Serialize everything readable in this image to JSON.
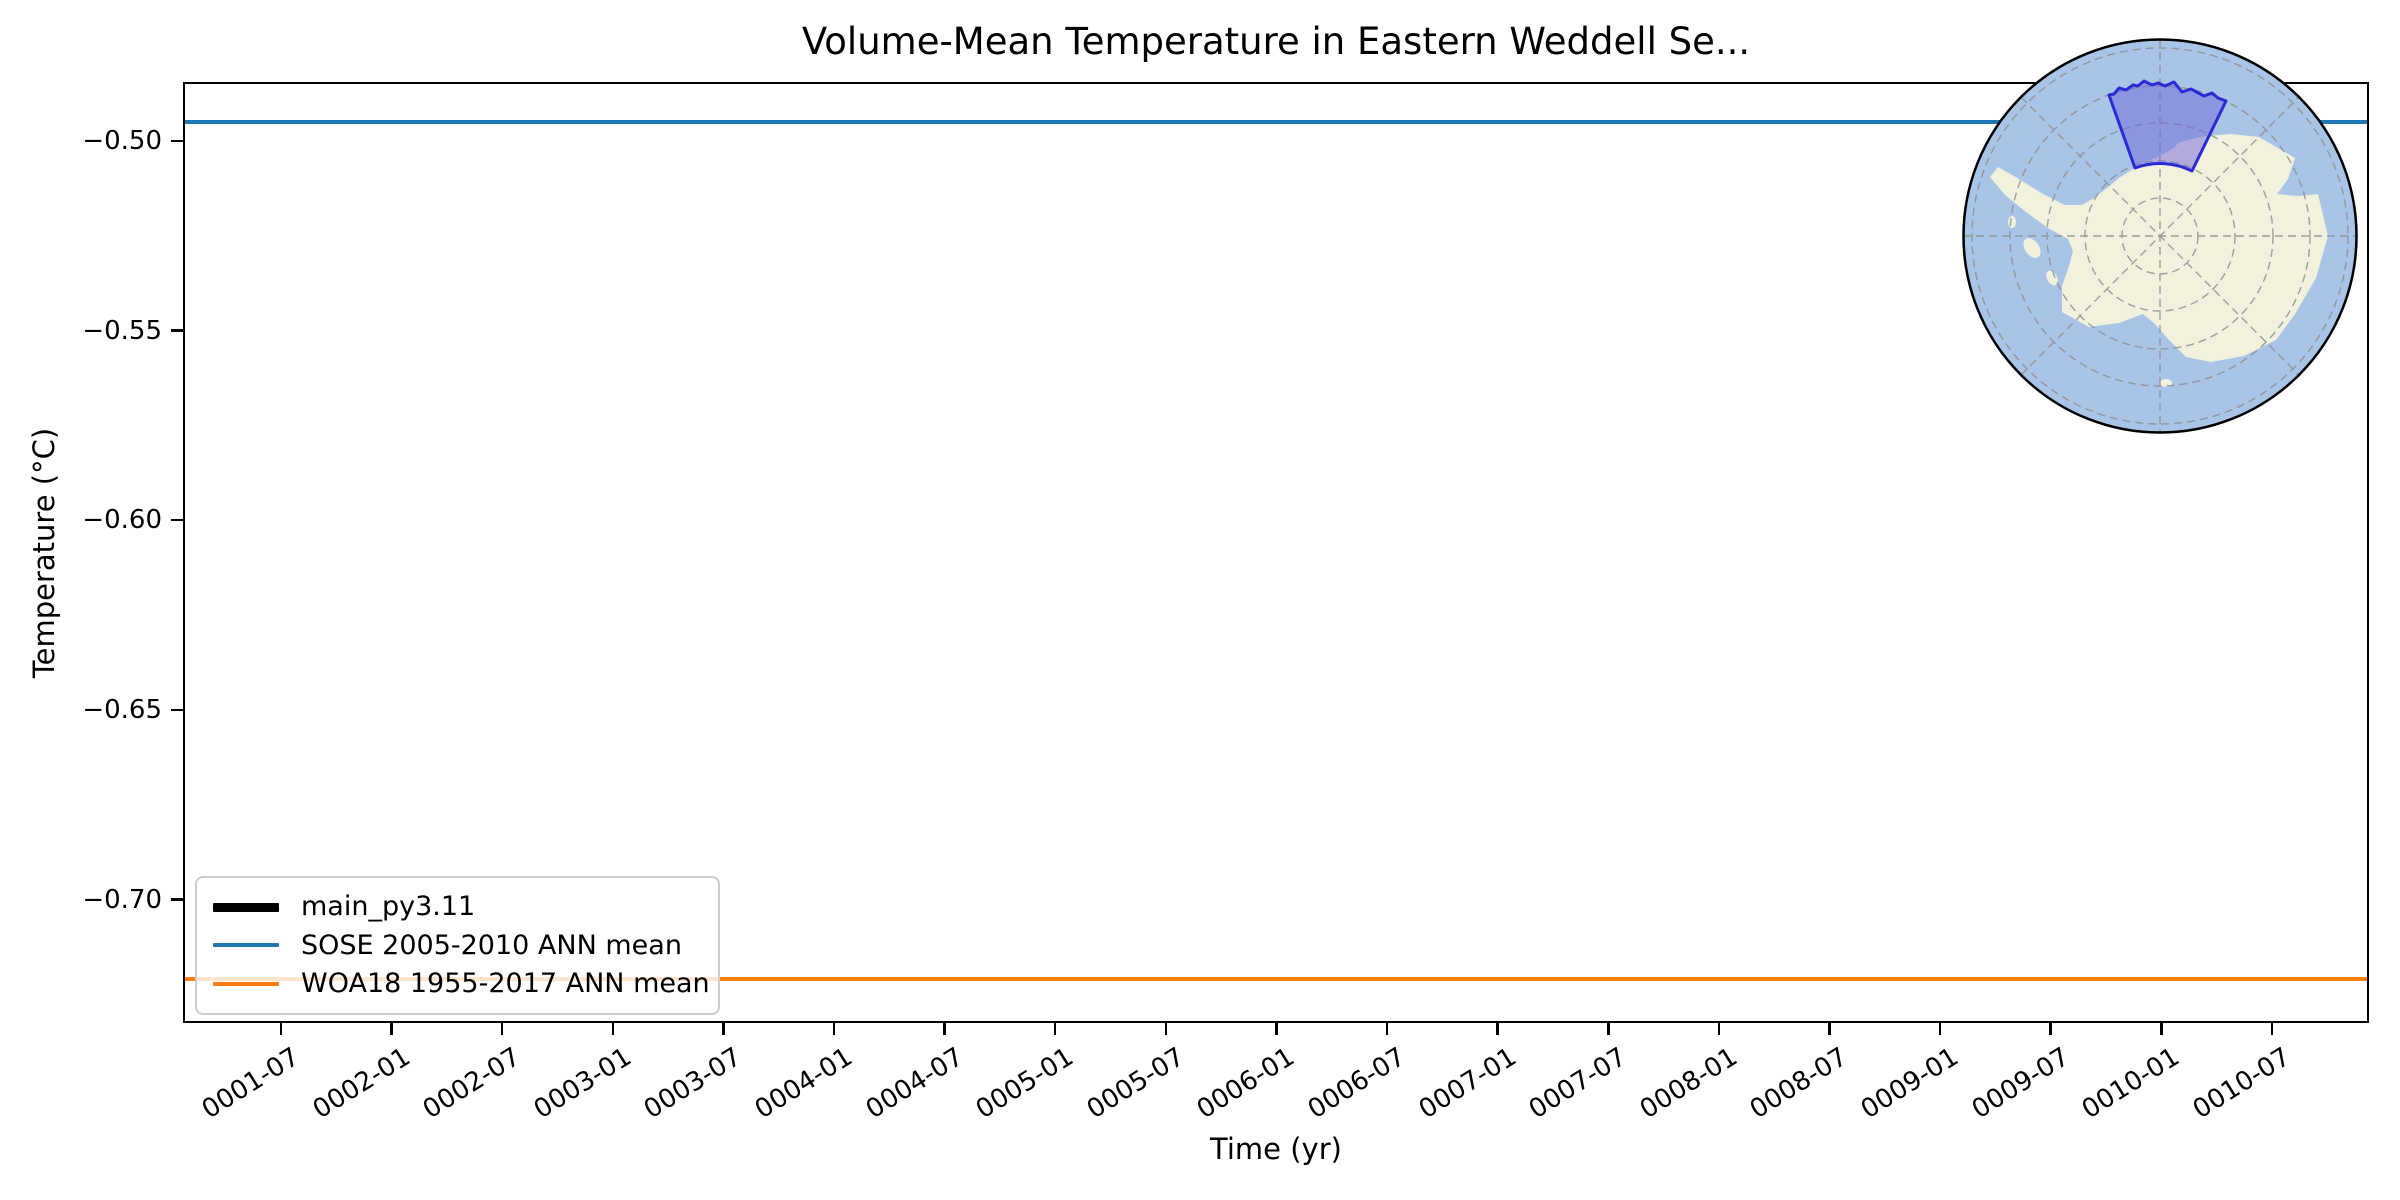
{
  "chart_data": {
    "type": "line",
    "title": "Volume-Mean Temperature in Eastern Weddell Se...",
    "xlabel": "Time (yr)",
    "ylabel": "Temperature (°C)",
    "ylim": [
      -0.7325,
      -0.4845
    ],
    "grid": false,
    "legend_position": "lower left",
    "y_ticks": [
      {
        "label": "−0.50",
        "value": -0.5
      },
      {
        "label": "−0.55",
        "value": -0.55
      },
      {
        "label": "−0.60",
        "value": -0.6
      },
      {
        "label": "−0.65",
        "value": -0.65
      },
      {
        "label": "−0.70",
        "value": -0.7
      }
    ],
    "x_tick_labels": [
      "0001-07",
      "0002-01",
      "0002-07",
      "0003-01",
      "0003-07",
      "0004-01",
      "0004-07",
      "0005-01",
      "0005-07",
      "0006-01",
      "0006-07",
      "0007-01",
      "0007-07",
      "0008-01",
      "0008-07",
      "0009-01",
      "0009-07",
      "0010-01",
      "0010-07"
    ],
    "series": [
      {
        "id": "main",
        "name": "main_py3.11",
        "type": "timeseries",
        "color": "#000000",
        "line_width": 9,
        "values": [],
        "visible_in_plot": false
      },
      {
        "id": "sose",
        "name": "SOSE 2005-2010 ANN mean",
        "type": "hline",
        "color": "#1f77b4",
        "line_width": 4,
        "value": -0.495
      },
      {
        "id": "woa18",
        "name": "WOA18 1955-2017 ANN mean",
        "type": "hline",
        "color": "#ff7f0e",
        "line_width": 4,
        "value": -0.721
      }
    ]
  },
  "legend": {
    "items": [
      {
        "id": "main",
        "label": "main_py3.11",
        "color": "#000000",
        "line_width": 9
      },
      {
        "id": "sose",
        "label": "SOSE 2005-2010 ANN mean",
        "color": "#1f77b4",
        "line_width": 4
      },
      {
        "id": "woa18",
        "label": "WOA18 1955-2017 ANN mean",
        "color": "#ff7f0e",
        "line_width": 4
      }
    ]
  },
  "inset_map": {
    "name": "antarctica-south-polar-inset",
    "highlighted_region": "Eastern Weddell Sea",
    "colors": {
      "ocean": "#a8c4e6",
      "land": "#f2f1de",
      "graticule": "#909090",
      "region_fill": "#6f66d8",
      "region_edge": "#2b2bd6",
      "border": "#000000"
    }
  }
}
